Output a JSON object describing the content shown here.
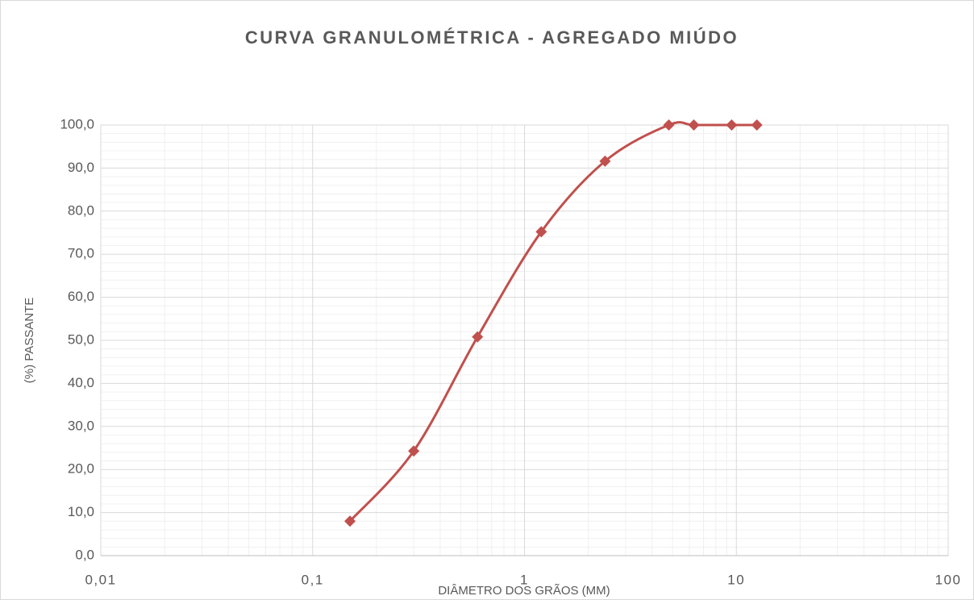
{
  "chart_data": {
    "type": "line",
    "title": "CURVA GRANULOMÉTRICA - AGREGADO MIÚDO",
    "x_label": "DIÂMETRO DOS GRÃOS (MM)",
    "y_label": "(%) PASSANTE",
    "x": [
      0.15,
      0.3,
      0.6,
      1.2,
      2.4,
      4.8,
      6.3,
      9.5,
      12.5
    ],
    "series": [
      {
        "color": "#c0504d",
        "values": [
          8.0,
          24.3,
          50.8,
          75.2,
          91.6,
          100.0,
          100.0,
          100.0,
          100.0
        ]
      }
    ],
    "xscale": "log",
    "xlim": [
      0.01,
      100
    ],
    "xticks": [
      {
        "value": 0.01,
        "label": "0,01"
      },
      {
        "value": 0.1,
        "label": "0,1"
      },
      1,
      10,
      100
    ],
    "ylim": [
      0,
      100
    ],
    "yticks": [
      {
        "value": 0,
        "label": "0,0"
      },
      {
        "value": 10,
        "label": "10,0"
      },
      {
        "value": 20,
        "label": "20,0"
      },
      {
        "value": 30,
        "label": "30,0"
      },
      {
        "value": 40,
        "label": "40,0"
      },
      {
        "value": 50,
        "label": "50,0"
      },
      {
        "value": 60,
        "label": "60,0"
      },
      {
        "value": 70,
        "label": "70,0"
      },
      {
        "value": 80,
        "label": "80,0"
      },
      {
        "value": 90,
        "label": "90,0"
      },
      {
        "value": 100,
        "label": "100,0"
      }
    ],
    "grid": true,
    "smooth": true
  }
}
